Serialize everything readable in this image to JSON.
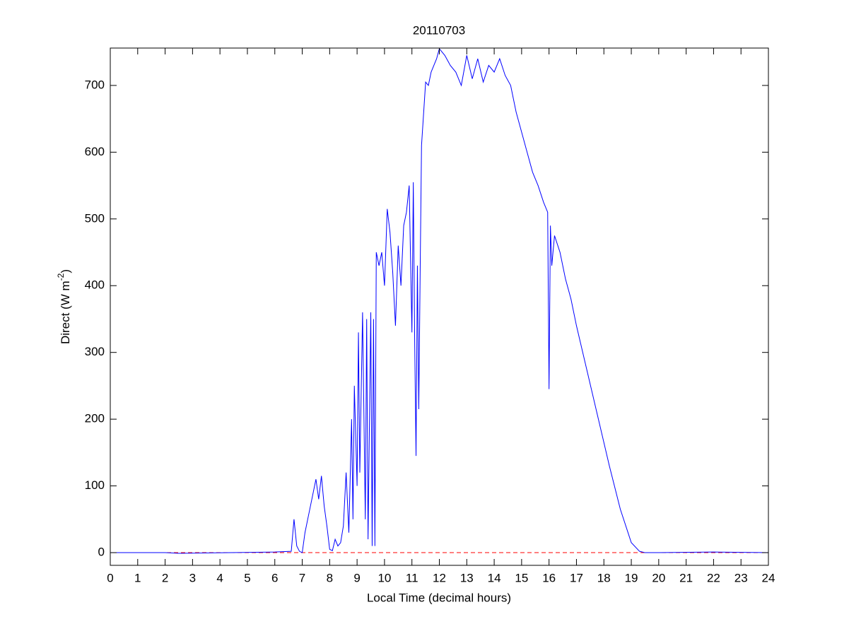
{
  "chart_data": {
    "type": "line",
    "title": "20110703",
    "xlabel": "Local Time (decimal hours)",
    "ylabel_parts": [
      "Direct (W m",
      "-2",
      ")"
    ],
    "x": [
      0,
      2,
      2.5,
      6,
      6.6,
      6.7,
      6.8,
      6.9,
      7.0,
      7.1,
      7.2,
      7.3,
      7.4,
      7.5,
      7.6,
      7.7,
      7.8,
      7.9,
      8.0,
      8.1,
      8.2,
      8.3,
      8.4,
      8.5,
      8.6,
      8.7,
      8.8,
      8.85,
      8.9,
      9.0,
      9.05,
      9.1,
      9.2,
      9.3,
      9.35,
      9.4,
      9.5,
      9.55,
      9.6,
      9.65,
      9.7,
      9.8,
      9.9,
      10.0,
      10.1,
      10.2,
      10.3,
      10.4,
      10.5,
      10.6,
      10.7,
      10.8,
      10.9,
      11.0,
      11.05,
      11.1,
      11.15,
      11.2,
      11.25,
      11.3,
      11.35,
      11.5,
      11.6,
      11.7,
      11.8,
      11.9,
      12.0,
      12.2,
      12.4,
      12.6,
      12.8,
      13.0,
      13.2,
      13.4,
      13.6,
      13.8,
      14.0,
      14.2,
      14.4,
      14.6,
      14.8,
      15.0,
      15.2,
      15.4,
      15.6,
      15.8,
      15.95,
      16.0,
      16.05,
      16.1,
      16.2,
      16.4,
      16.6,
      16.8,
      17.0,
      17.4,
      17.8,
      18.2,
      18.6,
      19.0,
      19.3,
      19.5,
      20,
      22,
      24
    ],
    "series": [
      {
        "color": "#0000ff",
        "values": [
          0,
          0,
          -1,
          1,
          2,
          50,
          10,
          2,
          0,
          30,
          50,
          70,
          90,
          110,
          80,
          115,
          70,
          40,
          5,
          3,
          20,
          10,
          15,
          40,
          120,
          30,
          200,
          50,
          250,
          100,
          330,
          120,
          360,
          50,
          350,
          20,
          360,
          10,
          350,
          10,
          450,
          430,
          450,
          400,
          515,
          480,
          420,
          340,
          460,
          400,
          490,
          510,
          550,
          330,
          555,
          320,
          145,
          430,
          215,
          420,
          610,
          705,
          700,
          720,
          730,
          740,
          755,
          745,
          730,
          720,
          700,
          745,
          710,
          740,
          705,
          730,
          720,
          740,
          715,
          700,
          660,
          630,
          600,
          570,
          550,
          525,
          510,
          245,
          490,
          430,
          475,
          450,
          410,
          380,
          340,
          270,
          200,
          130,
          65,
          15,
          2,
          0,
          0,
          1,
          0
        ]
      }
    ],
    "reference_line": {
      "value": 0,
      "color": "#ff0000",
      "style": "dashed"
    },
    "xlim": [
      0,
      24
    ],
    "xticks": [
      0,
      1,
      2,
      3,
      4,
      5,
      6,
      7,
      8,
      9,
      10,
      11,
      12,
      13,
      14,
      15,
      16,
      17,
      18,
      19,
      20,
      21,
      22,
      23,
      24
    ],
    "ylim": [
      -19,
      756
    ],
    "yticks": [
      0,
      100,
      200,
      300,
      400,
      500,
      600,
      700
    ]
  }
}
